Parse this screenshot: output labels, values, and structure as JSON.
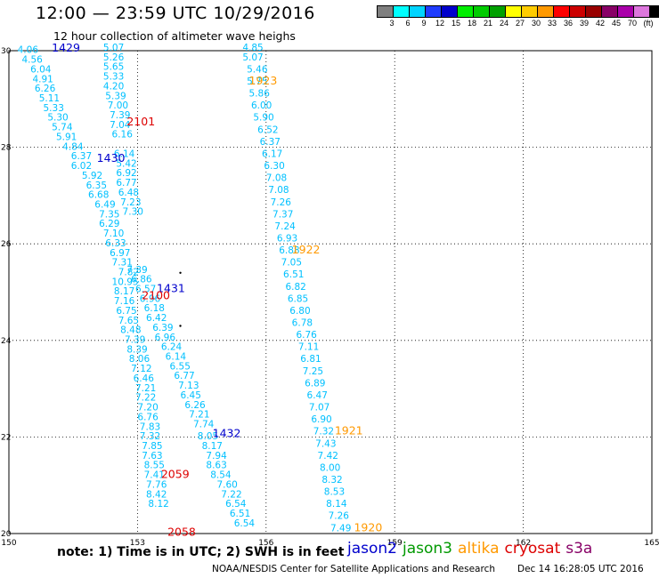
{
  "header": {
    "title": "12:00 — 23:59 UTC 10/29/2016",
    "subtitle": "12 hour collection of altimeter wave heighs"
  },
  "colorbar": {
    "colors": [
      "#7f7f7f",
      "#00ffff",
      "#00d4ff",
      "#1f3cff",
      "#0000cc",
      "#00ee00",
      "#00cc00",
      "#00a000",
      "#ffff00",
      "#ffcc00",
      "#ff9900",
      "#ff0000",
      "#cc0000",
      "#990000",
      "#880066",
      "#aa00aa",
      "#dd77dd",
      "#000000"
    ],
    "labels": [
      "3",
      "6",
      "9",
      "12",
      "15",
      "18",
      "21",
      "24",
      "27",
      "30",
      "33",
      "36",
      "39",
      "42",
      "45",
      "70",
      "(ft)"
    ]
  },
  "axes": {
    "lon_ticks": [
      "150",
      "153",
      "156",
      "159",
      "162",
      "165"
    ],
    "lat_ticks": [
      "30",
      "28",
      "26",
      "24",
      "22",
      "20"
    ]
  },
  "tracks": [
    {
      "color": "#00c0ff",
      "points": [
        {
          "lon": 150.2,
          "lat": 29.95,
          "v": "4.06"
        },
        {
          "lon": 150.3,
          "lat": 29.75,
          "v": "4.56"
        },
        {
          "lon": 150.5,
          "lat": 29.55,
          "v": "6.04"
        },
        {
          "lon": 150.55,
          "lat": 29.35,
          "v": "4.91"
        },
        {
          "lon": 150.6,
          "lat": 29.15,
          "v": "6.26"
        },
        {
          "lon": 150.7,
          "lat": 28.95,
          "v": "5.11"
        },
        {
          "lon": 150.8,
          "lat": 28.75,
          "v": "5.33"
        },
        {
          "lon": 150.9,
          "lat": 28.55,
          "v": "5.30"
        },
        {
          "lon": 151.0,
          "lat": 28.35,
          "v": "5.74"
        },
        {
          "lon": 151.1,
          "lat": 28.15,
          "v": "5.91"
        },
        {
          "lon": 151.25,
          "lat": 27.95,
          "v": "4.84"
        },
        {
          "lon": 151.45,
          "lat": 27.75,
          "v": "6.37"
        },
        {
          "lon": 151.45,
          "lat": 27.55,
          "v": "6.02"
        },
        {
          "lon": 151.7,
          "lat": 27.35,
          "v": "5.92"
        },
        {
          "lon": 151.8,
          "lat": 27.15,
          "v": "6.35"
        },
        {
          "lon": 151.85,
          "lat": 26.95,
          "v": "6.68"
        },
        {
          "lon": 152.0,
          "lat": 26.75,
          "v": "6.49"
        },
        {
          "lon": 152.1,
          "lat": 26.55,
          "v": "7.35"
        },
        {
          "lon": 152.1,
          "lat": 26.35,
          "v": "6.29"
        },
        {
          "lon": 152.2,
          "lat": 26.15,
          "v": "7.10"
        },
        {
          "lon": 152.25,
          "lat": 25.95,
          "v": "6.33"
        },
        {
          "lon": 152.35,
          "lat": 25.75,
          "v": "6.97"
        },
        {
          "lon": 152.4,
          "lat": 25.55,
          "v": "7.31"
        },
        {
          "lon": 152.55,
          "lat": 25.35,
          "v": "7.82"
        },
        {
          "lon": 152.4,
          "lat": 25.15,
          "v": "10.95"
        },
        {
          "lon": 152.45,
          "lat": 24.95,
          "v": "8.17"
        },
        {
          "lon": 152.45,
          "lat": 24.75,
          "v": "7.16"
        },
        {
          "lon": 152.5,
          "lat": 24.55,
          "v": "6.75"
        },
        {
          "lon": 152.55,
          "lat": 24.35,
          "v": "7.65"
        },
        {
          "lon": 152.6,
          "lat": 24.15,
          "v": "8.48"
        },
        {
          "lon": 152.7,
          "lat": 23.95,
          "v": "7.39"
        },
        {
          "lon": 152.75,
          "lat": 23.75,
          "v": "8.39"
        },
        {
          "lon": 152.8,
          "lat": 23.55,
          "v": "8.06"
        },
        {
          "lon": 152.85,
          "lat": 23.35,
          "v": "7.12"
        },
        {
          "lon": 152.9,
          "lat": 23.15,
          "v": "6.46"
        },
        {
          "lon": 152.95,
          "lat": 22.95,
          "v": "7.21"
        },
        {
          "lon": 152.95,
          "lat": 22.75,
          "v": "7.22"
        },
        {
          "lon": 153.0,
          "lat": 22.55,
          "v": "7.20"
        },
        {
          "lon": 153.0,
          "lat": 22.35,
          "v": "6.76"
        },
        {
          "lon": 153.05,
          "lat": 22.15,
          "v": "7.83"
        },
        {
          "lon": 153.05,
          "lat": 21.95,
          "v": "7.32"
        },
        {
          "lon": 153.1,
          "lat": 21.75,
          "v": "7.85"
        },
        {
          "lon": 153.1,
          "lat": 21.55,
          "v": "7.63"
        },
        {
          "lon": 153.15,
          "lat": 21.35,
          "v": "8.55"
        },
        {
          "lon": 153.15,
          "lat": 21.15,
          "v": "7.41"
        },
        {
          "lon": 153.2,
          "lat": 20.95,
          "v": "7.76"
        },
        {
          "lon": 153.2,
          "lat": 20.75,
          "v": "8.42"
        },
        {
          "lon": 153.25,
          "lat": 20.55,
          "v": "8.12"
        }
      ]
    },
    {
      "color": "#00c0ff",
      "points": [
        {
          "lon": 152.2,
          "lat": 30.0,
          "v": "5.07"
        },
        {
          "lon": 152.2,
          "lat": 29.8,
          "v": "5.26"
        },
        {
          "lon": 152.2,
          "lat": 29.6,
          "v": "5.65"
        },
        {
          "lon": 152.2,
          "lat": 29.4,
          "v": "5.33"
        },
        {
          "lon": 152.2,
          "lat": 29.2,
          "v": "4.20"
        },
        {
          "lon": 152.25,
          "lat": 29.0,
          "v": "5.39"
        },
        {
          "lon": 152.3,
          "lat": 28.8,
          "v": "7.00"
        },
        {
          "lon": 152.35,
          "lat": 28.6,
          "v": "7.39"
        },
        {
          "lon": 152.35,
          "lat": 28.4,
          "v": "7.04"
        },
        {
          "lon": 152.4,
          "lat": 28.2,
          "v": "6.16"
        },
        {
          "lon": 152.45,
          "lat": 27.8,
          "v": "6.14"
        },
        {
          "lon": 152.5,
          "lat": 27.6,
          "v": "5.42"
        },
        {
          "lon": 152.5,
          "lat": 27.4,
          "v": "6.92"
        },
        {
          "lon": 152.5,
          "lat": 27.2,
          "v": "6.77"
        },
        {
          "lon": 152.55,
          "lat": 27.0,
          "v": "6.48"
        },
        {
          "lon": 152.6,
          "lat": 26.8,
          "v": "7.23"
        },
        {
          "lon": 152.65,
          "lat": 26.6,
          "v": "7.30"
        },
        {
          "lon": 152.75,
          "lat": 25.4,
          "v": "7.39"
        },
        {
          "lon": 152.85,
          "lat": 25.2,
          "v": "6.86"
        },
        {
          "lon": 152.95,
          "lat": 25.0,
          "v": "6.57"
        },
        {
          "lon": 153.05,
          "lat": 24.8,
          "v": "6.96"
        },
        {
          "lon": 153.15,
          "lat": 24.6,
          "v": "6.18"
        },
        {
          "lon": 153.2,
          "lat": 24.4,
          "v": "6.42"
        },
        {
          "lon": 153.35,
          "lat": 24.2,
          "v": "6.39"
        },
        {
          "lon": 153.4,
          "lat": 24.0,
          "v": "6.96"
        },
        {
          "lon": 153.55,
          "lat": 23.8,
          "v": "6.24"
        },
        {
          "lon": 153.65,
          "lat": 23.6,
          "v": "6.14"
        },
        {
          "lon": 153.75,
          "lat": 23.4,
          "v": "6.55"
        },
        {
          "lon": 153.85,
          "lat": 23.2,
          "v": "6.77"
        },
        {
          "lon": 153.95,
          "lat": 23.0,
          "v": "7.13"
        },
        {
          "lon": 154.0,
          "lat": 22.8,
          "v": "6.45"
        },
        {
          "lon": 154.1,
          "lat": 22.6,
          "v": "6.26"
        },
        {
          "lon": 154.2,
          "lat": 22.4,
          "v": "7.21"
        },
        {
          "lon": 154.3,
          "lat": 22.2,
          "v": "7.74"
        },
        {
          "lon": 154.4,
          "lat": 21.95,
          "v": "8.05"
        },
        {
          "lon": 154.5,
          "lat": 21.75,
          "v": "8.17"
        },
        {
          "lon": 154.6,
          "lat": 21.55,
          "v": "7.94"
        },
        {
          "lon": 154.6,
          "lat": 21.35,
          "v": "8.63"
        },
        {
          "lon": 154.7,
          "lat": 21.15,
          "v": "8.54"
        },
        {
          "lon": 154.85,
          "lat": 20.95,
          "v": "7.60"
        },
        {
          "lon": 154.95,
          "lat": 20.75,
          "v": "7.22"
        },
        {
          "lon": 155.05,
          "lat": 20.55,
          "v": "6.54"
        },
        {
          "lon": 155.15,
          "lat": 20.35,
          "v": "6.51"
        },
        {
          "lon": 155.25,
          "lat": 20.15,
          "v": "6.54"
        }
      ]
    },
    {
      "color": "#00c0ff",
      "points": [
        {
          "lon": 155.45,
          "lat": 30.0,
          "v": "4.85"
        },
        {
          "lon": 155.45,
          "lat": 29.8,
          "v": "5.07"
        },
        {
          "lon": 155.55,
          "lat": 29.55,
          "v": "5.46"
        },
        {
          "lon": 155.55,
          "lat": 29.3,
          "v": "5.75"
        },
        {
          "lon": 155.6,
          "lat": 29.05,
          "v": "5.86"
        },
        {
          "lon": 155.65,
          "lat": 28.8,
          "v": "6.00"
        },
        {
          "lon": 155.7,
          "lat": 28.55,
          "v": "5.90"
        },
        {
          "lon": 155.8,
          "lat": 28.3,
          "v": "6.52"
        },
        {
          "lon": 155.85,
          "lat": 28.05,
          "v": "6.37"
        },
        {
          "lon": 155.9,
          "lat": 27.8,
          "v": "6.17"
        },
        {
          "lon": 155.95,
          "lat": 27.55,
          "v": "6.30"
        },
        {
          "lon": 156.0,
          "lat": 27.3,
          "v": "7.08"
        },
        {
          "lon": 156.05,
          "lat": 27.05,
          "v": "7.08"
        },
        {
          "lon": 156.1,
          "lat": 26.8,
          "v": "7.26"
        },
        {
          "lon": 156.15,
          "lat": 26.55,
          "v": "7.37"
        },
        {
          "lon": 156.2,
          "lat": 26.3,
          "v": "7.24"
        },
        {
          "lon": 156.25,
          "lat": 26.05,
          "v": "6.93"
        },
        {
          "lon": 156.3,
          "lat": 25.8,
          "v": "6.88"
        },
        {
          "lon": 156.35,
          "lat": 25.55,
          "v": "7.05"
        },
        {
          "lon": 156.4,
          "lat": 25.3,
          "v": "6.51"
        },
        {
          "lon": 156.45,
          "lat": 25.05,
          "v": "6.82"
        },
        {
          "lon": 156.5,
          "lat": 24.8,
          "v": "6.85"
        },
        {
          "lon": 156.55,
          "lat": 24.55,
          "v": "6.80"
        },
        {
          "lon": 156.6,
          "lat": 24.3,
          "v": "6.78"
        },
        {
          "lon": 156.7,
          "lat": 24.05,
          "v": "6.76"
        },
        {
          "lon": 156.75,
          "lat": 23.8,
          "v": "7.11"
        },
        {
          "lon": 156.8,
          "lat": 23.55,
          "v": "6.81"
        },
        {
          "lon": 156.85,
          "lat": 23.3,
          "v": "7.25"
        },
        {
          "lon": 156.9,
          "lat": 23.05,
          "v": "6.89"
        },
        {
          "lon": 156.95,
          "lat": 22.8,
          "v": "6.47"
        },
        {
          "lon": 157.0,
          "lat": 22.55,
          "v": "7.07"
        },
        {
          "lon": 157.05,
          "lat": 22.3,
          "v": "6.90"
        },
        {
          "lon": 157.1,
          "lat": 22.05,
          "v": "7.32"
        },
        {
          "lon": 157.15,
          "lat": 21.8,
          "v": "7.43"
        },
        {
          "lon": 157.2,
          "lat": 21.55,
          "v": "7.42"
        },
        {
          "lon": 157.25,
          "lat": 21.3,
          "v": "8.00"
        },
        {
          "lon": 157.3,
          "lat": 21.05,
          "v": "8.32"
        },
        {
          "lon": 157.35,
          "lat": 20.8,
          "v": "8.53"
        },
        {
          "lon": 157.4,
          "lat": 20.55,
          "v": "8.14"
        },
        {
          "lon": 157.45,
          "lat": 20.3,
          "v": "7.26"
        },
        {
          "lon": 157.5,
          "lat": 20.05,
          "v": "7.49"
        }
      ]
    }
  ],
  "times": [
    {
      "lon": 151.0,
      "lat": 29.98,
      "text": "1429",
      "color": "#0000cc"
    },
    {
      "lon": 152.75,
      "lat": 28.45,
      "text": "2101",
      "color": "#dd0000"
    },
    {
      "lon": 152.05,
      "lat": 27.7,
      "text": "1430",
      "color": "#0000cc"
    },
    {
      "lon": 155.6,
      "lat": 29.3,
      "text": "1923",
      "color": "#ff9900"
    },
    {
      "lon": 156.6,
      "lat": 25.8,
      "text": "1922",
      "color": "#ff9900"
    },
    {
      "lon": 153.45,
      "lat": 25.0,
      "text": "1431",
      "color": "#0000cc"
    },
    {
      "lon": 153.1,
      "lat": 24.85,
      "text": "2100",
      "color": "#dd0000"
    },
    {
      "lon": 154.75,
      "lat": 22.0,
      "text": "1432",
      "color": "#0000cc"
    },
    {
      "lon": 157.6,
      "lat": 22.05,
      "text": "1921",
      "color": "#ff9900"
    },
    {
      "lon": 153.55,
      "lat": 21.15,
      "text": "2059",
      "color": "#dd0000"
    },
    {
      "lon": 153.7,
      "lat": 19.95,
      "text": "2058",
      "color": "#dd0000"
    },
    {
      "lon": 158.05,
      "lat": 20.05,
      "text": "1920",
      "color": "#ff9900"
    }
  ],
  "dots": [
    {
      "lon": 154.0,
      "lat": 25.4
    },
    {
      "lon": 154.0,
      "lat": 24.3
    }
  ],
  "footer": {
    "note": "note:  1) Time is in UTC;  2) SWH is in feet",
    "satellites": [
      {
        "name": "jason2",
        "color": "#0000cc"
      },
      {
        "name": "jason3",
        "color": "#009900"
      },
      {
        "name": "altika",
        "color": "#ff9900"
      },
      {
        "name": "cryosat",
        "color": "#dd0000"
      },
      {
        "name": "s3a",
        "color": "#880066"
      }
    ],
    "credit": "NOAA/NESDIS Center for Satellite Applications and Research",
    "timestamp": "Dec 14 16:28:05 UTC 2016"
  }
}
